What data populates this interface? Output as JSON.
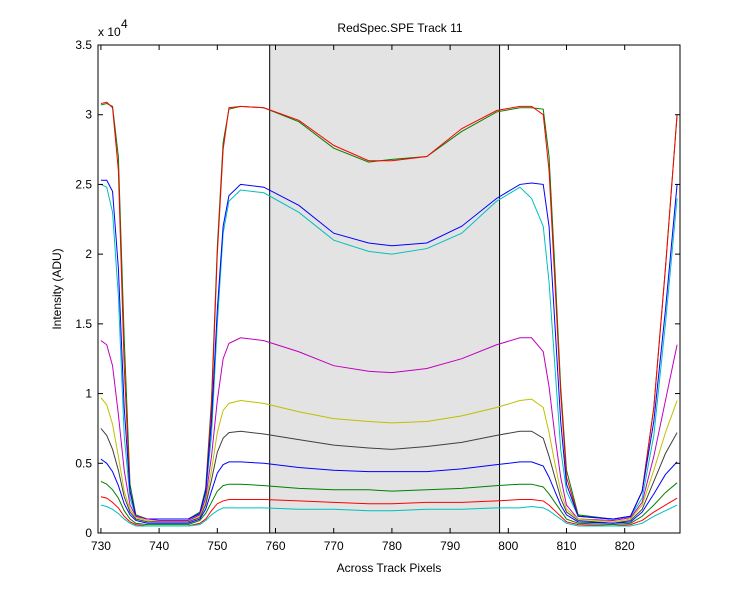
{
  "chart_data": {
    "type": "line",
    "title": "RedSpec.SPE   Track 11",
    "xlabel": "Across Track Pixels",
    "ylabel": "Intensity (ADU)",
    "y_multiplier": "x 10",
    "y_multiplier_exponent": "4",
    "xlim": [
      729.5,
      829.5
    ],
    "ylim": [
      0,
      3.5
    ],
    "xticks": [
      730,
      740,
      750,
      760,
      770,
      780,
      790,
      800,
      810,
      820
    ],
    "yticks": [
      0,
      0.5,
      1,
      1.5,
      2,
      2.5,
      3,
      3.5
    ],
    "shaded_region": [
      759,
      798.5
    ],
    "x": [
      730,
      731,
      732,
      733,
      734,
      735,
      736,
      738,
      740,
      745,
      747,
      748,
      749,
      750,
      751,
      752,
      754,
      758,
      764,
      770,
      776,
      780,
      786,
      792,
      798,
      802,
      804,
      806,
      807,
      808,
      809,
      810,
      812,
      818,
      821,
      823,
      825,
      827,
      829
    ],
    "series": [
      {
        "color": "#008000",
        "values": [
          3.07,
          3.08,
          3.06,
          2.7,
          1.4,
          0.35,
          0.13,
          0.1,
          0.1,
          0.1,
          0.15,
          0.32,
          0.95,
          2.05,
          2.8,
          3.04,
          3.06,
          3.05,
          2.95,
          2.76,
          2.66,
          2.68,
          2.7,
          2.88,
          3.02,
          3.05,
          3.05,
          3.04,
          2.7,
          1.9,
          1.05,
          0.45,
          0.13,
          0.1,
          0.12,
          0.3,
          0.9,
          1.9,
          3.0
        ]
      },
      {
        "color": "#ff0000",
        "values": [
          3.08,
          3.09,
          3.05,
          2.6,
          1.2,
          0.3,
          0.12,
          0.1,
          0.1,
          0.1,
          0.14,
          0.3,
          0.9,
          2.0,
          2.75,
          3.05,
          3.06,
          3.05,
          2.96,
          2.78,
          2.67,
          2.67,
          2.7,
          2.9,
          3.03,
          3.06,
          3.06,
          3.0,
          2.6,
          1.8,
          1.0,
          0.4,
          0.12,
          0.1,
          0.12,
          0.3,
          0.9,
          1.9,
          3.0
        ]
      },
      {
        "color": "#00bfbf",
        "values": [
          2.5,
          2.48,
          2.3,
          1.7,
          0.7,
          0.25,
          0.12,
          0.1,
          0.1,
          0.1,
          0.14,
          0.28,
          0.7,
          1.5,
          2.15,
          2.38,
          2.46,
          2.44,
          2.3,
          2.1,
          2.02,
          2.0,
          2.04,
          2.15,
          2.38,
          2.48,
          2.4,
          2.2,
          1.8,
          1.2,
          0.6,
          0.3,
          0.12,
          0.1,
          0.12,
          0.25,
          0.7,
          1.5,
          2.4
        ]
      },
      {
        "color": "#0000ff",
        "values": [
          2.53,
          2.53,
          2.45,
          1.9,
          0.9,
          0.3,
          0.12,
          0.1,
          0.1,
          0.1,
          0.14,
          0.3,
          0.8,
          1.6,
          2.2,
          2.42,
          2.5,
          2.48,
          2.35,
          2.15,
          2.08,
          2.06,
          2.08,
          2.2,
          2.4,
          2.5,
          2.51,
          2.5,
          2.2,
          1.5,
          0.8,
          0.35,
          0.12,
          0.1,
          0.12,
          0.3,
          0.8,
          1.6,
          2.5
        ]
      },
      {
        "color": "#bf00bf",
        "values": [
          1.38,
          1.35,
          1.2,
          0.85,
          0.45,
          0.2,
          0.12,
          0.1,
          0.09,
          0.09,
          0.13,
          0.25,
          0.55,
          0.95,
          1.25,
          1.36,
          1.4,
          1.38,
          1.3,
          1.2,
          1.16,
          1.15,
          1.18,
          1.25,
          1.35,
          1.4,
          1.4,
          1.3,
          1.05,
          0.7,
          0.4,
          0.2,
          0.1,
          0.09,
          0.11,
          0.22,
          0.55,
          0.95,
          1.35
        ]
      },
      {
        "color": "#bfbf00",
        "values": [
          0.97,
          0.92,
          0.78,
          0.55,
          0.3,
          0.17,
          0.11,
          0.09,
          0.08,
          0.08,
          0.12,
          0.22,
          0.45,
          0.72,
          0.88,
          0.93,
          0.95,
          0.93,
          0.87,
          0.82,
          0.8,
          0.79,
          0.8,
          0.84,
          0.9,
          0.95,
          0.96,
          0.9,
          0.72,
          0.5,
          0.3,
          0.17,
          0.1,
          0.08,
          0.1,
          0.2,
          0.45,
          0.72,
          0.95
        ]
      },
      {
        "color": "#404040",
        "values": [
          0.75,
          0.7,
          0.6,
          0.45,
          0.26,
          0.15,
          0.1,
          0.08,
          0.08,
          0.08,
          0.11,
          0.2,
          0.38,
          0.58,
          0.68,
          0.72,
          0.73,
          0.71,
          0.67,
          0.63,
          0.61,
          0.6,
          0.62,
          0.65,
          0.7,
          0.73,
          0.73,
          0.68,
          0.55,
          0.4,
          0.25,
          0.15,
          0.09,
          0.07,
          0.09,
          0.17,
          0.37,
          0.57,
          0.72
        ]
      },
      {
        "color": "#0000ff",
        "values": [
          0.53,
          0.5,
          0.44,
          0.34,
          0.21,
          0.13,
          0.09,
          0.07,
          0.07,
          0.07,
          0.1,
          0.17,
          0.3,
          0.43,
          0.49,
          0.51,
          0.51,
          0.5,
          0.47,
          0.45,
          0.44,
          0.44,
          0.44,
          0.46,
          0.49,
          0.51,
          0.51,
          0.48,
          0.4,
          0.3,
          0.2,
          0.13,
          0.08,
          0.07,
          0.08,
          0.15,
          0.28,
          0.42,
          0.51
        ]
      },
      {
        "color": "#008000",
        "values": [
          0.37,
          0.35,
          0.31,
          0.25,
          0.16,
          0.1,
          0.07,
          0.06,
          0.06,
          0.06,
          0.09,
          0.14,
          0.22,
          0.3,
          0.34,
          0.35,
          0.35,
          0.34,
          0.32,
          0.31,
          0.31,
          0.3,
          0.31,
          0.32,
          0.34,
          0.35,
          0.35,
          0.33,
          0.28,
          0.22,
          0.16,
          0.1,
          0.07,
          0.06,
          0.07,
          0.12,
          0.2,
          0.29,
          0.36
        ]
      },
      {
        "color": "#ff0000",
        "values": [
          0.26,
          0.25,
          0.22,
          0.18,
          0.12,
          0.08,
          0.06,
          0.05,
          0.05,
          0.05,
          0.07,
          0.1,
          0.16,
          0.21,
          0.23,
          0.24,
          0.24,
          0.24,
          0.23,
          0.22,
          0.21,
          0.21,
          0.22,
          0.22,
          0.23,
          0.24,
          0.24,
          0.23,
          0.2,
          0.16,
          0.12,
          0.08,
          0.06,
          0.05,
          0.06,
          0.09,
          0.15,
          0.2,
          0.25
        ]
      },
      {
        "color": "#00bfbf",
        "values": [
          0.2,
          0.19,
          0.17,
          0.14,
          0.1,
          0.07,
          0.05,
          0.05,
          0.05,
          0.05,
          0.06,
          0.09,
          0.13,
          0.16,
          0.18,
          0.18,
          0.18,
          0.18,
          0.17,
          0.17,
          0.16,
          0.16,
          0.17,
          0.17,
          0.18,
          0.18,
          0.19,
          0.18,
          0.16,
          0.13,
          0.1,
          0.07,
          0.05,
          0.05,
          0.05,
          0.07,
          0.12,
          0.16,
          0.2
        ]
      }
    ]
  }
}
